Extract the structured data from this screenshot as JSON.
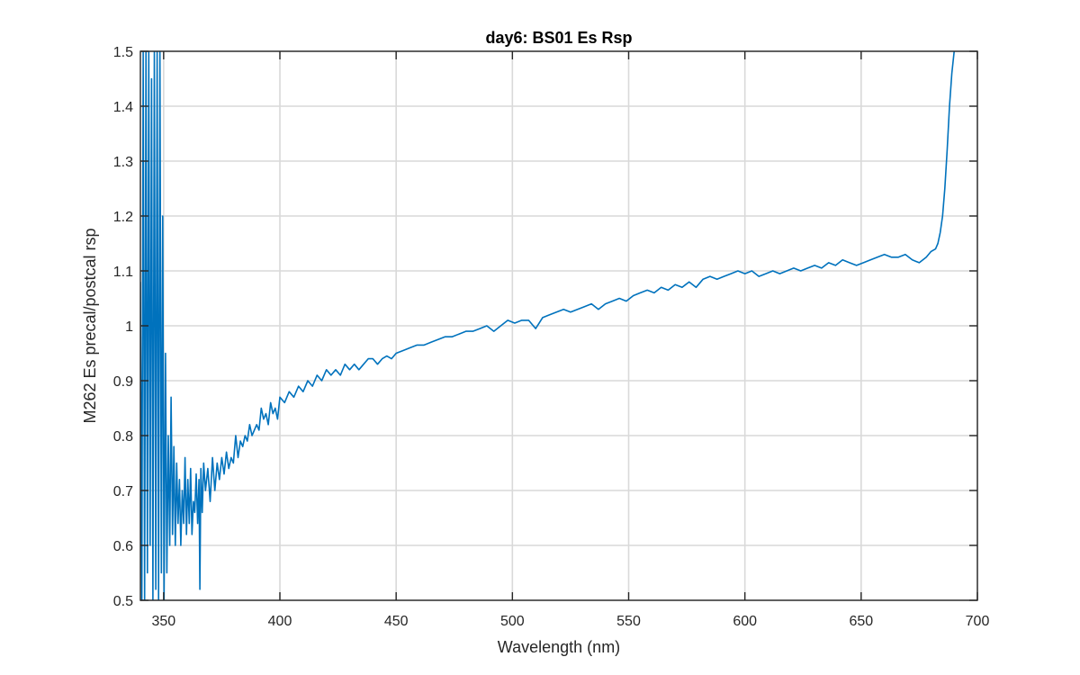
{
  "chart_data": {
    "type": "line",
    "title": "day6: BS01 Es Rsp",
    "xlabel": "Wavelength (nm)",
    "ylabel": "M262 Es precal/postcal rsp",
    "xlim": [
      340,
      700
    ],
    "ylim": [
      0.5,
      1.5
    ],
    "grid": true,
    "x_ticks": [
      350,
      400,
      450,
      500,
      550,
      600,
      650,
      700
    ],
    "y_ticks": [
      0.5,
      0.6,
      0.7,
      0.8,
      0.9,
      1,
      1.1,
      1.2,
      1.3,
      1.4,
      1.5
    ],
    "x_tick_labels": [
      "350",
      "400",
      "450",
      "500",
      "550",
      "600",
      "650",
      "700"
    ],
    "y_tick_labels": [
      "0.5",
      "0.6",
      "0.7",
      "0.8",
      "0.9",
      "1",
      "1.1",
      "1.2",
      "1.3",
      "1.4",
      "1.5"
    ],
    "line_color": "#0072BD",
    "grid_color": "#d9d9d9",
    "series": [
      {
        "x": [
          340,
          340.6,
          341.2,
          341.8,
          342.4,
          343,
          343.6,
          344.2,
          344.8,
          345.4,
          346,
          346.6,
          347.2,
          347.8,
          348.4,
          349,
          349.6,
          350.2,
          350.8,
          351.4,
          352,
          352.6,
          353.2,
          353.8,
          354.4,
          355,
          355.6,
          356.2,
          356.8,
          357.4,
          358,
          358.6,
          359.2,
          359.8,
          360.4,
          361,
          361.6,
          362.2,
          362.8,
          363.4,
          364,
          364.6,
          365.2,
          365.6,
          366,
          366.6,
          367.2,
          368,
          369,
          370,
          371,
          372,
          373,
          374,
          375,
          376,
          377,
          378,
          379,
          380,
          381,
          382,
          383,
          384,
          385,
          386,
          387,
          388,
          389,
          390,
          391,
          392,
          393,
          394,
          395,
          396,
          397,
          398,
          399,
          400,
          402,
          404,
          406,
          408,
          410,
          412,
          414,
          416,
          418,
          420,
          422,
          424,
          426,
          428,
          430,
          432,
          434,
          436,
          438,
          440,
          442,
          444,
          446,
          448,
          450,
          453,
          456,
          459,
          462,
          465,
          468,
          471,
          474,
          477,
          480,
          483,
          486,
          489,
          492,
          495,
          498,
          501,
          504,
          507,
          510,
          513,
          516,
          519,
          522,
          525,
          528,
          531,
          534,
          537,
          540,
          543,
          546,
          549,
          552,
          555,
          558,
          561,
          564,
          567,
          570,
          573,
          576,
          579,
          582,
          585,
          588,
          591,
          594,
          597,
          600,
          603,
          606,
          609,
          612,
          615,
          618,
          621,
          624,
          627,
          630,
          633,
          636,
          639,
          642,
          645,
          648,
          651,
          654,
          657,
          660,
          663,
          666,
          669,
          672,
          675,
          678,
          680,
          682,
          683,
          684,
          685,
          686,
          687,
          688,
          689,
          690
        ],
        "y": [
          1.08,
          0.5,
          1.5,
          0.5,
          1.5,
          0.55,
          1.5,
          0.6,
          1.45,
          0.5,
          1.5,
          0.52,
          1.5,
          0.5,
          1.5,
          0.55,
          1.2,
          0.5,
          0.95,
          0.55,
          0.8,
          0.6,
          0.87,
          0.62,
          0.78,
          0.6,
          0.75,
          0.64,
          0.72,
          0.6,
          0.7,
          0.64,
          0.76,
          0.62,
          0.72,
          0.64,
          0.74,
          0.62,
          0.68,
          0.66,
          0.73,
          0.64,
          0.72,
          0.52,
          0.74,
          0.66,
          0.75,
          0.7,
          0.74,
          0.68,
          0.76,
          0.7,
          0.75,
          0.72,
          0.76,
          0.73,
          0.77,
          0.74,
          0.76,
          0.75,
          0.8,
          0.76,
          0.79,
          0.78,
          0.8,
          0.79,
          0.82,
          0.8,
          0.81,
          0.82,
          0.81,
          0.85,
          0.83,
          0.84,
          0.82,
          0.86,
          0.84,
          0.85,
          0.83,
          0.87,
          0.86,
          0.88,
          0.87,
          0.89,
          0.88,
          0.9,
          0.89,
          0.91,
          0.9,
          0.92,
          0.91,
          0.92,
          0.91,
          0.93,
          0.92,
          0.93,
          0.92,
          0.93,
          0.94,
          0.94,
          0.93,
          0.94,
          0.945,
          0.94,
          0.95,
          0.955,
          0.96,
          0.965,
          0.965,
          0.97,
          0.975,
          0.98,
          0.98,
          0.985,
          0.99,
          0.99,
          0.995,
          1,
          0.99,
          1.0,
          1.01,
          1.005,
          1.01,
          1.01,
          0.995,
          1.015,
          1.02,
          1.025,
          1.03,
          1.025,
          1.03,
          1.035,
          1.04,
          1.03,
          1.04,
          1.045,
          1.05,
          1.045,
          1.055,
          1.06,
          1.065,
          1.06,
          1.07,
          1.065,
          1.075,
          1.07,
          1.08,
          1.07,
          1.085,
          1.09,
          1.085,
          1.09,
          1.095,
          1.1,
          1.095,
          1.1,
          1.09,
          1.095,
          1.1,
          1.095,
          1.1,
          1.105,
          1.1,
          1.105,
          1.11,
          1.105,
          1.115,
          1.11,
          1.12,
          1.115,
          1.11,
          1.115,
          1.12,
          1.125,
          1.13,
          1.125,
          1.125,
          1.13,
          1.12,
          1.115,
          1.125,
          1.135,
          1.14,
          1.15,
          1.17,
          1.2,
          1.25,
          1.32,
          1.4,
          1.46,
          1.5
        ]
      }
    ]
  }
}
